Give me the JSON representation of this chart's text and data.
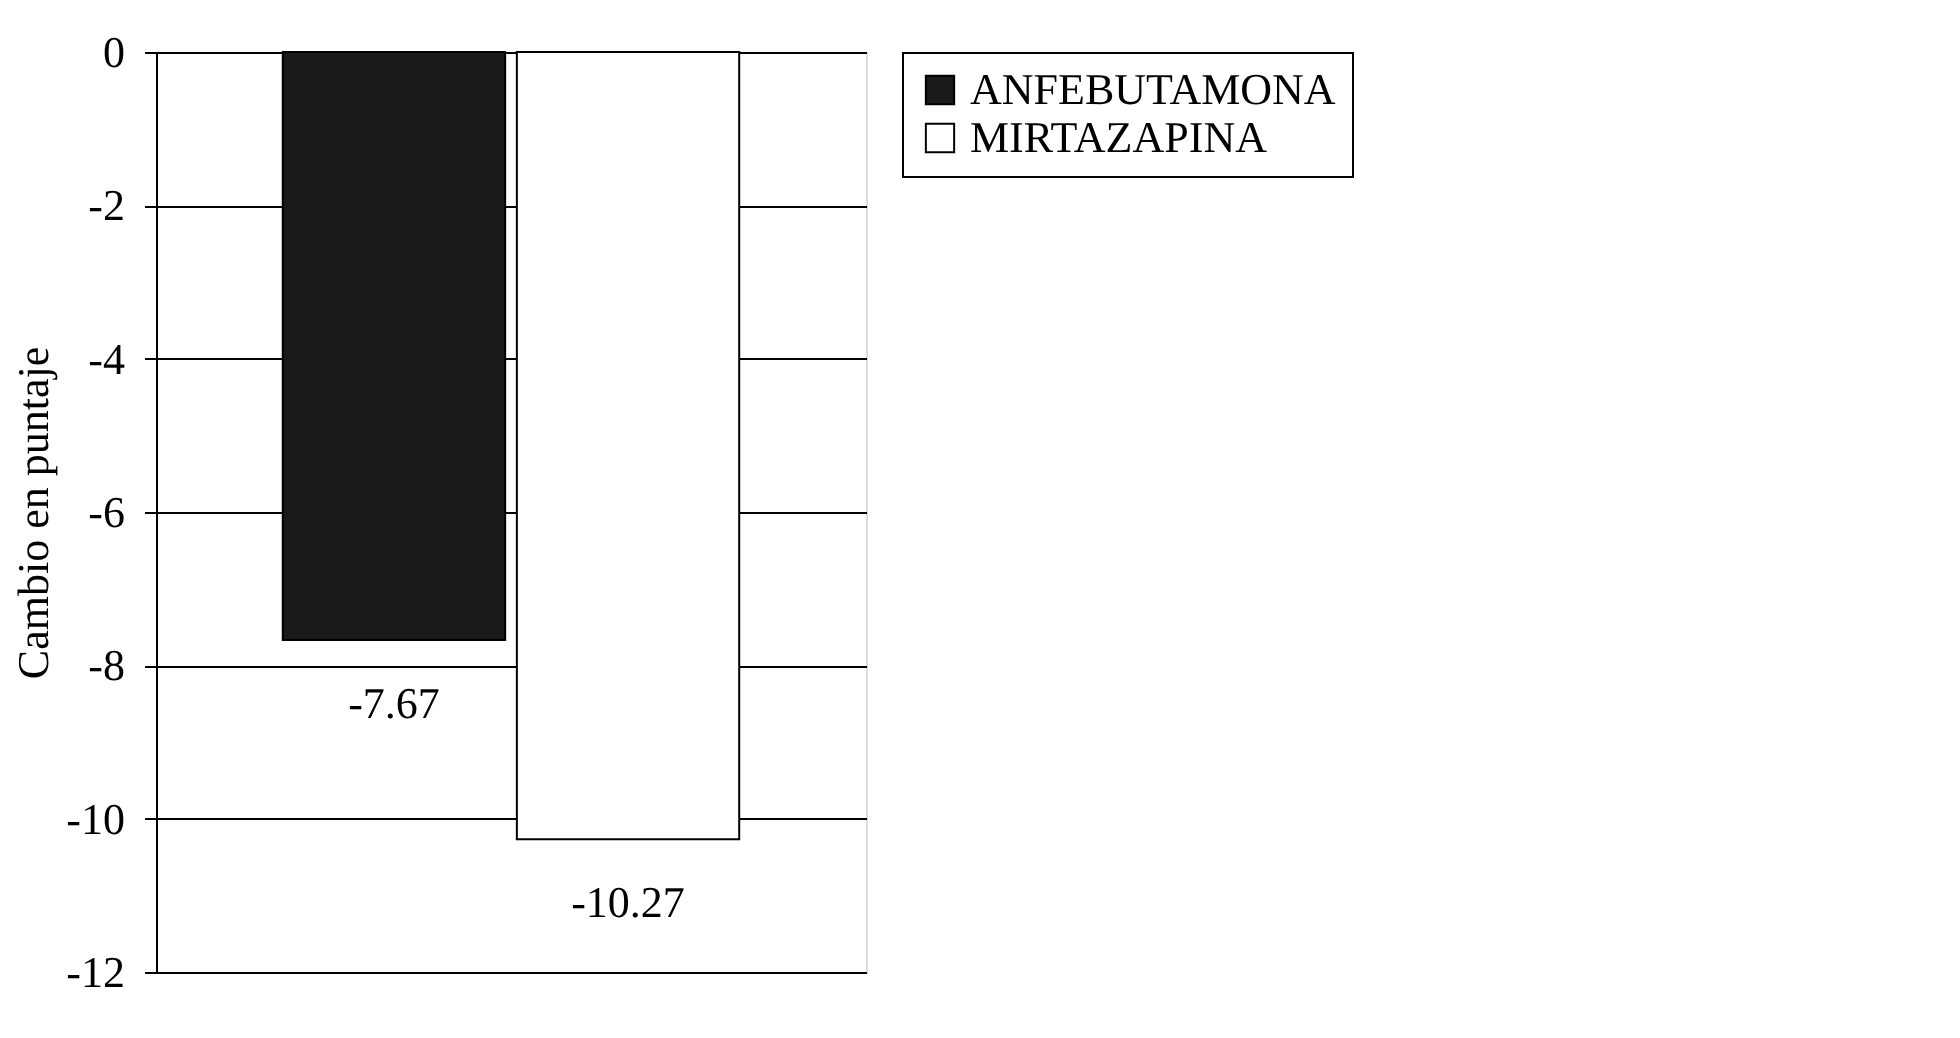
{
  "chart_data": {
    "type": "bar",
    "ylabel": "Cambio en puntaje",
    "categories": [
      null
    ],
    "series": [
      {
        "name": "ANFEBUTAMONA",
        "color": "#1a1a1a",
        "values": [
          -7.67
        ]
      },
      {
        "name": "MIRTAZAPINA",
        "color": "#ffffff",
        "values": [
          -10.27
        ]
      }
    ],
    "ylim": [
      -12,
      0
    ],
    "yticks": [
      0,
      -2,
      -4,
      -6,
      -8,
      -10,
      -12
    ],
    "grid": "y",
    "legend": "right",
    "data_labels": true,
    "tick_labels": "y"
  }
}
